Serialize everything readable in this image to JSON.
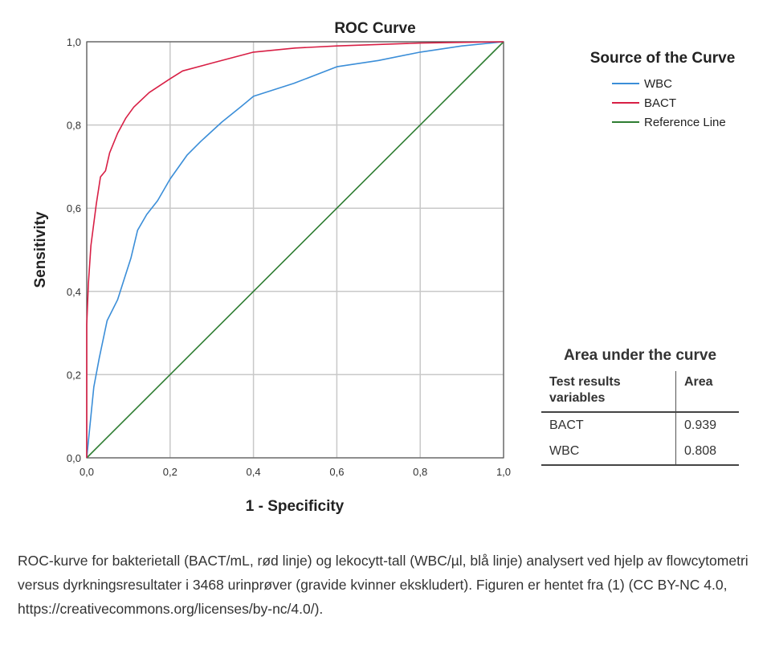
{
  "chart_data": {
    "type": "line",
    "title": "ROC Curve",
    "xlabel": "1 - Specificity",
    "ylabel": "Sensitivity",
    "xlim": [
      0,
      1
    ],
    "ylim": [
      0,
      1
    ],
    "grid": true,
    "xticks": [
      "0,0",
      "0,2",
      "0,4",
      "0,6",
      "0,8",
      "1,0"
    ],
    "yticks": [
      "0,0",
      "0,2",
      "0,4",
      "0,6",
      "0,8",
      "1,0"
    ],
    "legend_title": "Source of the Curve",
    "legend_position": "right",
    "series": [
      {
        "name": "WBC",
        "color": "#3b8ed8",
        "x": [
          0,
          0.017,
          0.03,
          0.049,
          0.074,
          0.09,
          0.106,
          0.122,
          0.144,
          0.17,
          0.2,
          0.241,
          0.273,
          0.324,
          0.369,
          0.4,
          0.497,
          0.6,
          0.7,
          0.8,
          0.9,
          1.0
        ],
        "y": [
          0,
          0.17,
          0.24,
          0.33,
          0.38,
          0.43,
          0.48,
          0.547,
          0.585,
          0.618,
          0.67,
          0.728,
          0.76,
          0.807,
          0.843,
          0.869,
          0.9,
          0.94,
          0.955,
          0.975,
          0.99,
          1.0
        ]
      },
      {
        "name": "BACT",
        "color": "#d81f45",
        "x": [
          0,
          0,
          0.004,
          0.01,
          0.023,
          0.033,
          0.045,
          0.055,
          0.074,
          0.094,
          0.113,
          0.15,
          0.2,
          0.23,
          0.305,
          0.4,
          0.5,
          0.6,
          0.8,
          1.0
        ],
        "y": [
          0,
          0.32,
          0.42,
          0.51,
          0.61,
          0.675,
          0.69,
          0.733,
          0.78,
          0.817,
          0.843,
          0.878,
          0.911,
          0.93,
          0.95,
          0.975,
          0.985,
          0.99,
          0.997,
          1.0
        ]
      },
      {
        "name": "Reference Line",
        "color": "#2e7d32",
        "x": [
          0,
          1
        ],
        "y": [
          0,
          1
        ]
      }
    ]
  },
  "auc_table": {
    "title": "Area under the curve",
    "headers": [
      "Test results variables",
      "Area"
    ],
    "rows": [
      [
        "BACT",
        "0.939"
      ],
      [
        "WBC",
        "0.808"
      ]
    ]
  },
  "caption": "ROC-kurve for bakterietall (BACT/mL, rød linje) og lekocytt-tall (WBC/µl, blå linje) analysert ved hjelp av flowcytometri versus dyrkningsresultater i 3468 urinprøver (gravide kvinner ekskludert). Figuren er hentet fra (1) (CC BY-NC 4.0, https://creativecommons.org/licenses/by-nc/4.0/)."
}
